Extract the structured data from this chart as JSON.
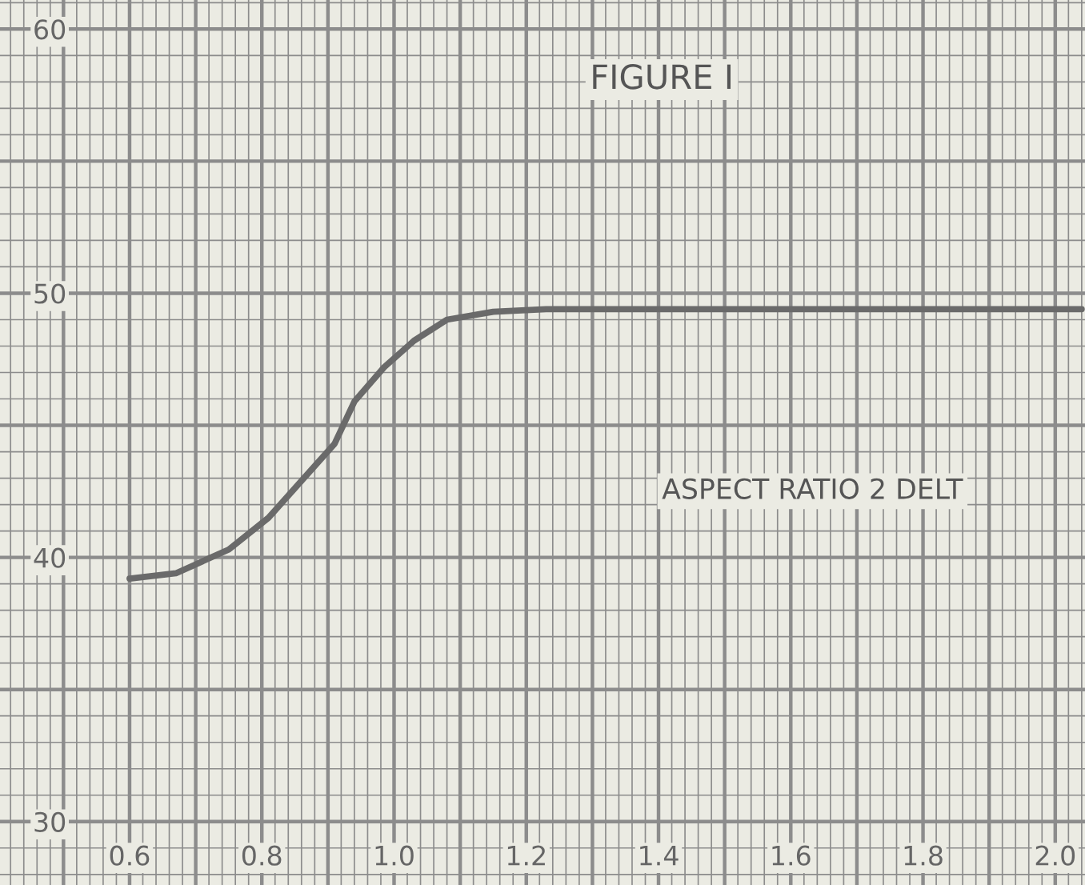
{
  "chart_data": {
    "type": "line",
    "title": "FIGURE I",
    "annotations": [
      "ASPECT RATIO 2 DELT"
    ],
    "x": [
      0.6,
      0.67,
      0.75,
      0.81,
      0.86,
      0.91,
      0.94,
      0.985,
      1.03,
      1.08,
      1.15,
      1.23,
      1.6,
      2.04
    ],
    "series": [
      {
        "color": "#6a6a6a",
        "values": [
          39.2,
          39.4,
          40.3,
          41.5,
          42.9,
          44.3,
          45.9,
          47.2,
          48.2,
          49.0,
          49.3,
          49.4,
          49.4,
          49.4
        ]
      }
    ],
    "xlim": [
      0.404,
      2.045
    ],
    "ylim": [
      27.6,
      61.1
    ],
    "xticks": [
      0.6,
      0.8,
      {
        "value": 1,
        "label": "1.0"
      },
      1.2,
      1.4,
      1.6,
      1.8,
      {
        "value": 2,
        "label": "2.0"
      }
    ],
    "yticks": [
      30,
      40,
      50,
      60
    ],
    "grid": true,
    "marker": "none",
    "line_style": "solid"
  }
}
